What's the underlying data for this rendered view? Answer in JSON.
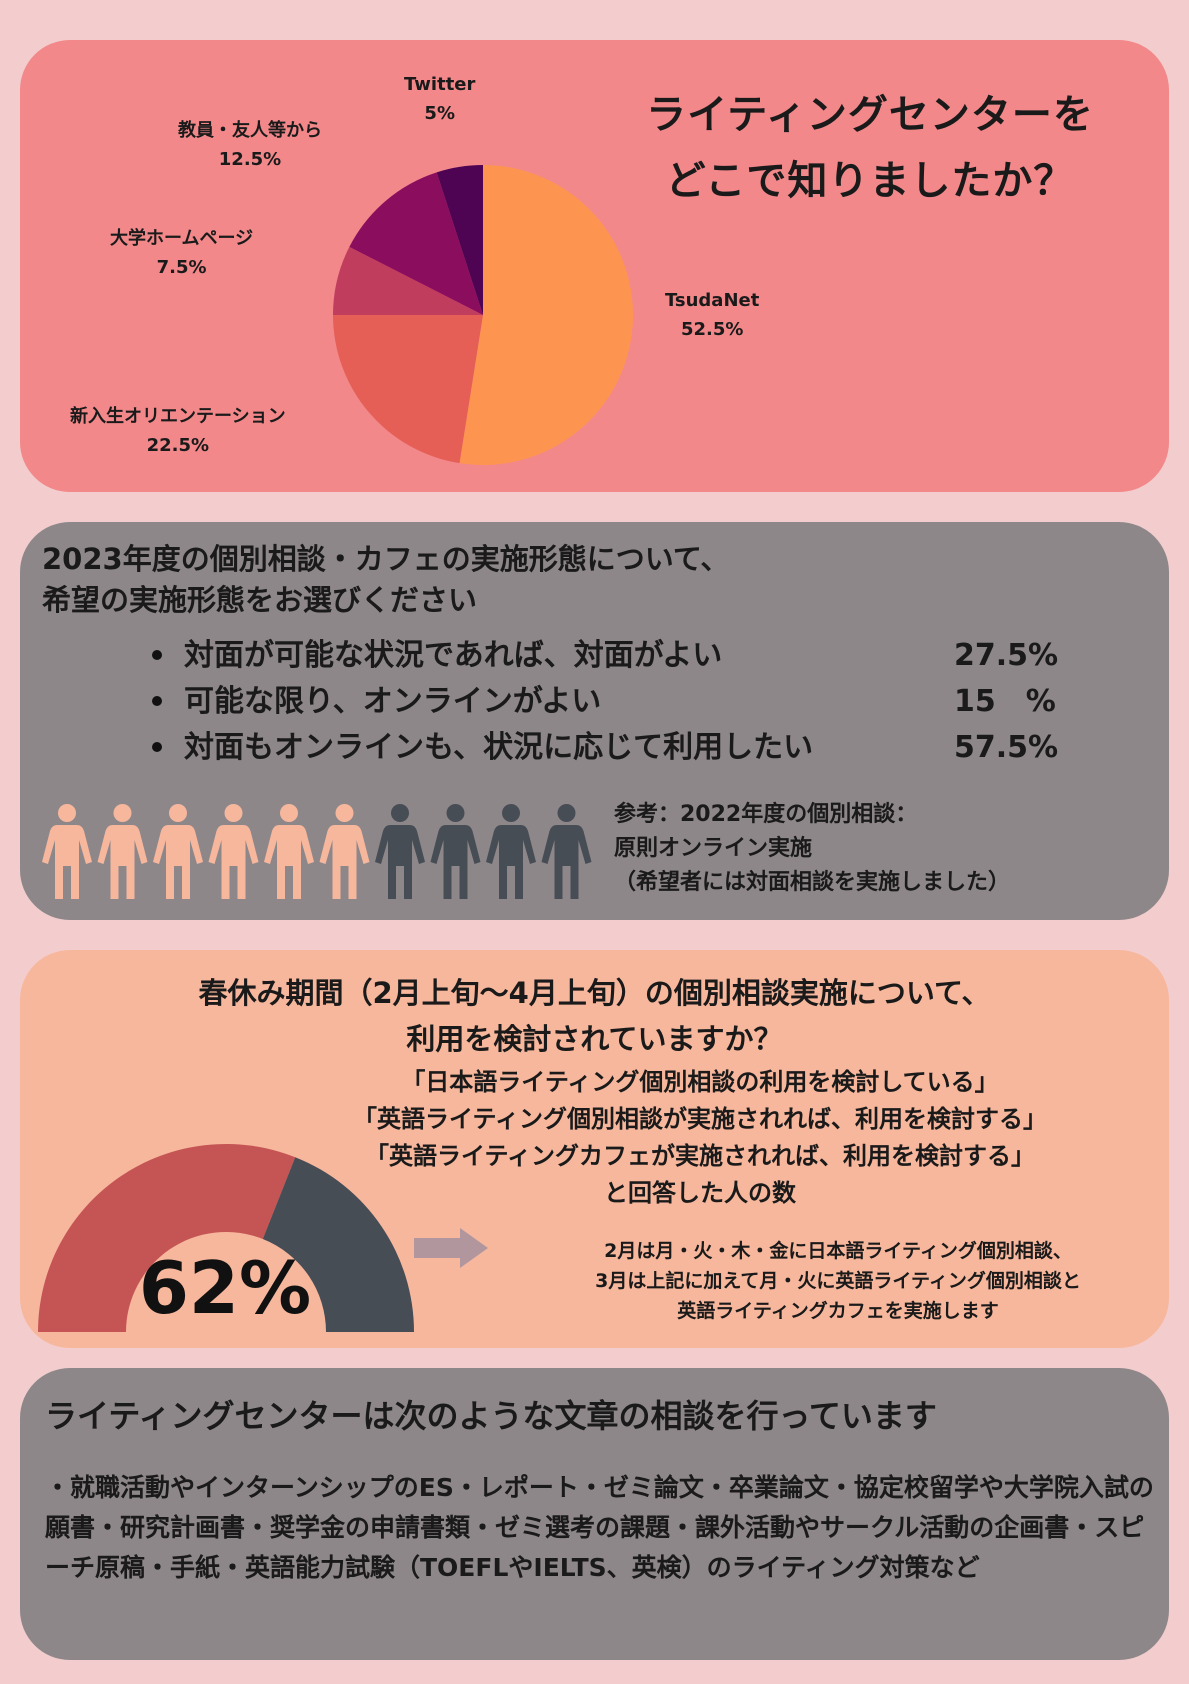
{
  "section1": {
    "title_line1": "ライティングセンターを",
    "title_line2": "どこで知りましたか？",
    "slices": [
      {
        "name": "TsudaNet",
        "pct_label": "52.5%",
        "value": 52.5,
        "color": "#fd9550"
      },
      {
        "name": "新入生オリエンテーション",
        "pct_label": "22.5%",
        "value": 22.5,
        "color": "#e55f57"
      },
      {
        "name": "大学ホームページ",
        "pct_label": "7.5%",
        "value": 7.5,
        "color": "#c03d5e"
      },
      {
        "name": "教員・友人等から",
        "pct_label": "12.5%",
        "value": 12.5,
        "color": "#8b0d5e"
      },
      {
        "name": "Twitter",
        "pct_label": "5%",
        "value": 5,
        "color": "#4e0353"
      }
    ]
  },
  "chart_data": {
    "type": "pie",
    "categories": [
      "TsudaNet",
      "新入生オリエンテーション",
      "大学ホームページ",
      "教員・友人等から",
      "Twitter"
    ],
    "values": [
      52.5,
      22.5,
      7.5,
      12.5,
      5
    ]
  },
  "section2": {
    "title_line1": "2023年度の個別相談・カフェの実施形態について、",
    "title_line2": "希望の実施形態をお選びください",
    "options": [
      {
        "label": "対面が可能な状況であれば、対面がよい",
        "pct": "27.5%"
      },
      {
        "label": "可能な限り、オンラインがよい",
        "pct": "15　%"
      },
      {
        "label": "対面もオンラインも、状況に応じて利用したい",
        "pct": "57.5%"
      }
    ],
    "people": {
      "total": 10,
      "highlighted": 6,
      "highlight_color": "#f7b79d",
      "other_color": "#474d55"
    },
    "reference_line1": "参考：2022年度の個別相談：",
    "reference_line2": "原則オンライン実施",
    "reference_line3": "（希望者には対面相談を実施しました）"
  },
  "section3": {
    "title_line1": "春休み期間（2月上旬〜4月上旬）の個別相談実施について、",
    "title_line2": "利用を検討されていますか？",
    "responses": [
      "「日本語ライティング個別相談の利用を検討している」",
      "「英語ライティング個別相談が実施されれば、利用を検討する」",
      "「英語ライティングカフェが実施されれば、利用を検討する」",
      "と回答した人の数"
    ],
    "gauge_value": "62%",
    "gauge_fraction": 0.62,
    "gauge_colors": {
      "filled": "#c55555",
      "rest": "#474d55"
    },
    "schedule_line1": "2月は月・火・木・金に日本語ライティング個別相談、",
    "schedule_line2": "3月は上記に加えて月・火に英語ライティング個別相談と",
    "schedule_line3": "英語ライティングカフェを実施します"
  },
  "section4": {
    "title": "ライティングセンターは次のような文章の相談を行っています",
    "body": "・就職活動やインターンシップのES・レポート・ゼミ論文・卒業論文・協定校留学や大学院入試の願書・研究計画書・奨学金の申請書類・ゼミ選考の課題・課外活動やサークル活動の企画書・スピーチ原稿・手紙・英語能力試験（TOEFLやIELTS、英検）のライティング対策など"
  }
}
